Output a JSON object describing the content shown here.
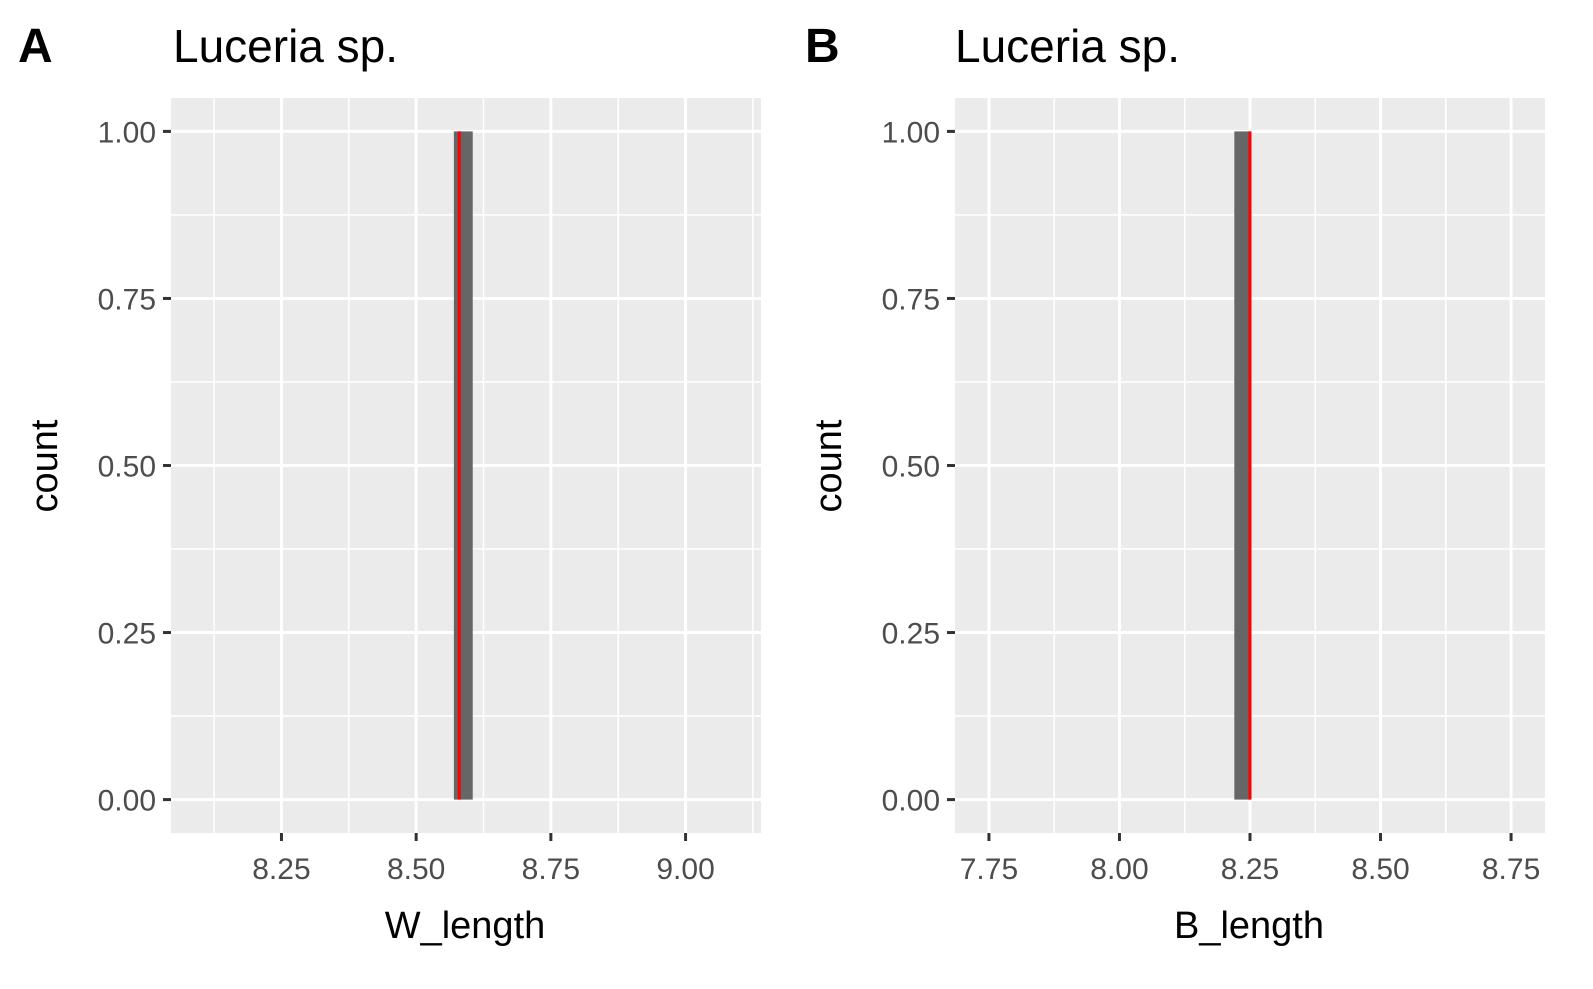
{
  "colors": {
    "panel_bg": "#ebebeb",
    "grid": "#ffffff",
    "bar_fill": "#666666",
    "mean_line": "#ff0000",
    "tick": "#333333"
  },
  "chart_data": [
    {
      "type": "bar",
      "tag": "A",
      "title": "Luceria sp.",
      "xlabel": "W_length",
      "ylabel": "count",
      "xlim": [
        8.045,
        9.14
      ],
      "ylim": [
        -0.05,
        1.05
      ],
      "xticks": [
        8.25,
        8.5,
        8.75,
        9.0
      ],
      "xtick_labels": [
        "8.25",
        "8.50",
        "8.75",
        "9.00"
      ],
      "yticks": [
        0,
        0.25,
        0.5,
        0.75,
        1.0
      ],
      "ytick_labels": [
        "0.00",
        "0.25",
        "0.50",
        "0.75",
        "1.00"
      ],
      "bars": [
        {
          "x0": 8.57,
          "x1": 8.605,
          "count": 1
        }
      ],
      "mean_line_x": 8.58,
      "grid": true
    },
    {
      "type": "bar",
      "tag": "B",
      "title": "Luceria sp.",
      "xlabel": "B_length",
      "ylabel": "count",
      "xlim": [
        7.685,
        8.815
      ],
      "ylim": [
        -0.05,
        1.05
      ],
      "xticks": [
        7.75,
        8.0,
        8.25,
        8.5,
        8.75
      ],
      "xtick_labels": [
        "7.75",
        "8.00",
        "8.25",
        "8.50",
        "8.75"
      ],
      "yticks": [
        0,
        0.25,
        0.5,
        0.75,
        1.0
      ],
      "ytick_labels": [
        "0.00",
        "0.25",
        "0.50",
        "0.75",
        "1.00"
      ],
      "bars": [
        {
          "x0": 8.22,
          "x1": 8.25,
          "count": 1
        }
      ],
      "mean_line_x": 8.25,
      "grid": true
    }
  ]
}
